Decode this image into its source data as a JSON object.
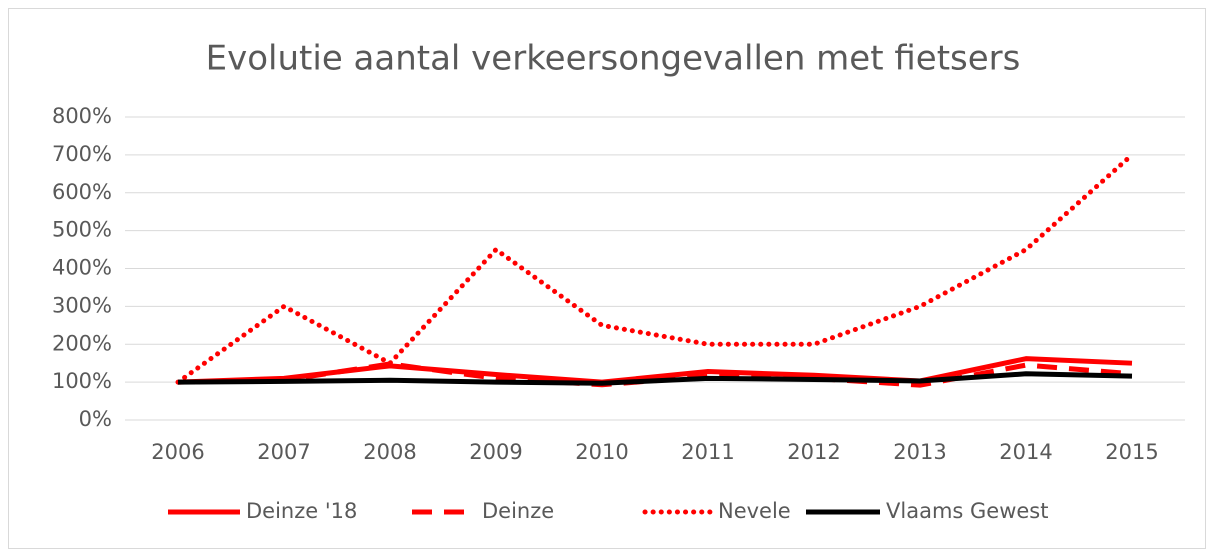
{
  "chart_data": {
    "type": "line",
    "title": "Evolutie aantal verkeersongevallen met fietsers",
    "categories": [
      "2006",
      "2007",
      "2008",
      "2009",
      "2010",
      "2011",
      "2012",
      "2013",
      "2014",
      "2015"
    ],
    "series": [
      {
        "name": "Deinze '18",
        "color": "#ff0000",
        "dash": "solid",
        "values": [
          100,
          110,
          143,
          120,
          100,
          128,
          118,
          103,
          162,
          150
        ]
      },
      {
        "name": "Deinze",
        "color": "#ff0000",
        "dash": "dashed",
        "values": [
          100,
          105,
          148,
          110,
          93,
          115,
          110,
          92,
          145,
          122
        ]
      },
      {
        "name": "Nevele",
        "color": "#ff0000",
        "dash": "dotted",
        "values": [
          100,
          300,
          150,
          450,
          250,
          200,
          200,
          300,
          450,
          700
        ]
      },
      {
        "name": "Vlaams Gewest",
        "color": "#000000",
        "dash": "solid",
        "values": [
          100,
          102,
          105,
          100,
          97,
          110,
          107,
          103,
          122,
          116
        ]
      }
    ],
    "ylim": [
      0,
      800
    ],
    "yticks": [
      {
        "value": 0,
        "label": "0%"
      },
      {
        "value": 100,
        "label": "100%"
      },
      {
        "value": 200,
        "label": "200%"
      },
      {
        "value": 300,
        "label": "300%"
      },
      {
        "value": 400,
        "label": "400%"
      },
      {
        "value": 500,
        "label": "500%"
      },
      {
        "value": 600,
        "label": "600%"
      },
      {
        "value": 700,
        "label": "700%"
      },
      {
        "value": 800,
        "label": "800%"
      }
    ],
    "grid": true,
    "legend": "bottom"
  }
}
